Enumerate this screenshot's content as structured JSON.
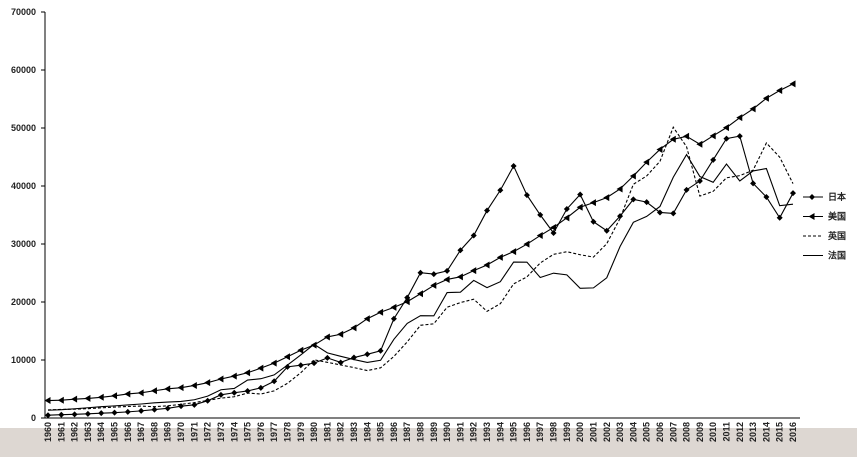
{
  "chart_data": {
    "type": "line",
    "categories": [
      "1960",
      "1961",
      "1962",
      "1963",
      "1964",
      "1965",
      "1966",
      "1967",
      "1968",
      "1969",
      "1970",
      "1971",
      "1972",
      "1973",
      "1974",
      "1975",
      "1976",
      "1977",
      "1978",
      "1979",
      "1980",
      "1981",
      "1982",
      "1983",
      "1984",
      "1985",
      "1986",
      "1987",
      "1988",
      "1989",
      "1990",
      "1991",
      "1992",
      "1993",
      "1994",
      "1995",
      "1996",
      "1997",
      "1998",
      "1999",
      "2000",
      "2001",
      "2002",
      "2003",
      "2004",
      "2005",
      "2006",
      "2007",
      "2008",
      "2009",
      "2010",
      "2011",
      "2012",
      "2013",
      "2014",
      "2015",
      "2016"
    ],
    "series": [
      {
        "name": "日本",
        "color": "#000000",
        "marker": "diamond",
        "dashed": false,
        "values": [
          479,
          564,
          633,
          718,
          835,
          919,
          1058,
          1228,
          1450,
          1669,
          2037,
          2272,
          2967,
          3997,
          4354,
          4659,
          5197,
          6335,
          8821,
          9105,
          9463,
          10361,
          9578,
          10425,
          10984,
          11585,
          17112,
          20745,
          25051,
          24813,
          25359,
          28925,
          31465,
          35766,
          39269,
          43440,
          38437,
          35022,
          31903,
          36027,
          38532,
          33846,
          32289,
          34808,
          37689,
          37218,
          35434,
          35275,
          39339,
          40855,
          44508,
          48168,
          48603,
          40454,
          38109,
          34524,
          38761
        ]
      },
      {
        "name": "美国",
        "color": "#000000",
        "marker": "triangle",
        "dashed": false,
        "values": [
          3007,
          3067,
          3244,
          3375,
          3574,
          3828,
          4146,
          4336,
          4696,
          5032,
          5234,
          5609,
          6094,
          6726,
          7226,
          7801,
          8592,
          9453,
          10565,
          11674,
          12575,
          13976,
          14434,
          15544,
          17121,
          18237,
          19071,
          20039,
          21417,
          22857,
          23889,
          24342,
          25419,
          26387,
          27695,
          28691,
          29968,
          31459,
          32854,
          34515,
          36330,
          37134,
          37998,
          39490,
          41725,
          44123,
          46302,
          48050,
          48570,
          47195,
          48651,
          50066,
          51784,
          53291,
          55124,
          56469,
          57600
        ]
      },
      {
        "name": "英国",
        "color": "#000000",
        "marker": "none",
        "dashed": true,
        "values": [
          1398,
          1472,
          1526,
          1613,
          1749,
          1874,
          1986,
          2058,
          1952,
          2101,
          2348,
          2650,
          3030,
          3426,
          3666,
          4300,
          4138,
          4681,
          5976,
          7805,
          10032,
          9599,
          9146,
          8691,
          8179,
          8652,
          10611,
          13118,
          15987,
          16239,
          19095,
          19900,
          20487,
          18389,
          19709,
          23123,
          24332,
          26734,
          28214,
          28670,
          28150,
          27744,
          30057,
          34420,
          40290,
          41732,
          44252,
          50135,
          46767,
          38262,
          39080,
          41412,
          41790,
          42724,
          47417,
          44975,
          40412
        ]
      },
      {
        "name": "法国",
        "color": "#000000",
        "marker": "none",
        "dashed": false,
        "values": [
          1334,
          1428,
          1590,
          1765,
          1951,
          2091,
          2251,
          2414,
          2626,
          2748,
          2857,
          3143,
          3767,
          4874,
          5091,
          6537,
          6771,
          7432,
          9118,
          10881,
          12710,
          11228,
          10631,
          10073,
          9587,
          9952,
          13569,
          16306,
          17640,
          17610,
          21621,
          21688,
          23719,
          22474,
          23495,
          26890,
          26872,
          24228,
          24973,
          24674,
          22364,
          22433,
          24177,
          29568,
          33741,
          34760,
          36470,
          41508,
          45413,
          41631,
          40638,
          43791,
          40875,
          42603,
          43009,
          36614,
          36865
        ]
      }
    ],
    "ylim": [
      0,
      70000
    ],
    "yticks": [
      0,
      10000,
      20000,
      30000,
      40000,
      50000,
      60000,
      70000
    ]
  }
}
